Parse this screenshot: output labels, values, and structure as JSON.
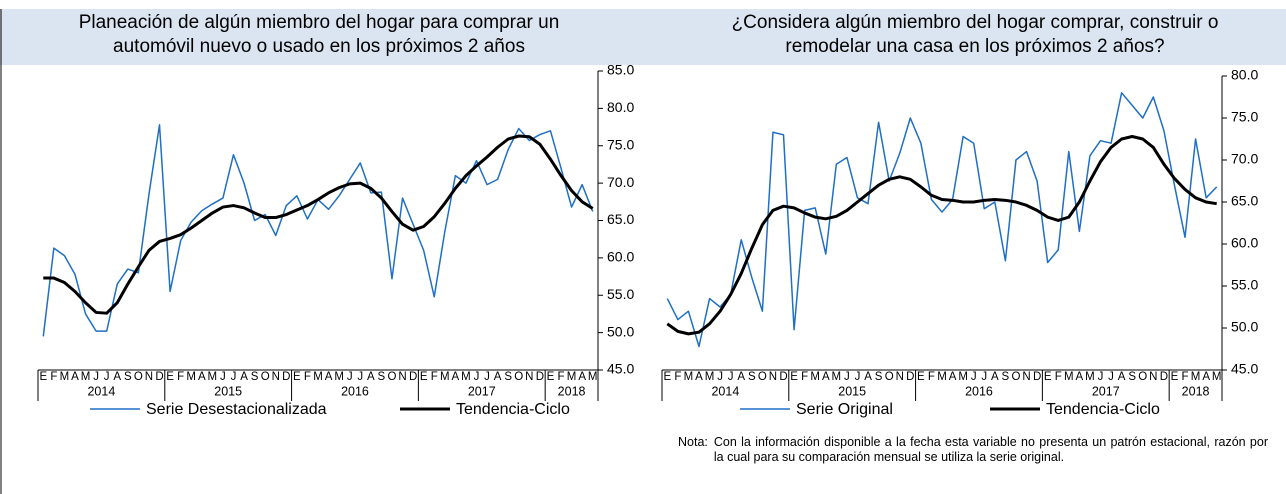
{
  "chart_data": [
    {
      "type": "line",
      "title": [
        "Planeación de algún miembro del hogar para comprar un",
        "automóvil nuevo o usado en los próximos 2 años"
      ],
      "categories": [
        "E",
        "F",
        "M",
        "A",
        "M",
        "J",
        "J",
        "A",
        "S",
        "O",
        "N",
        "D",
        "E",
        "F",
        "M",
        "A",
        "M",
        "J",
        "J",
        "A",
        "S",
        "O",
        "N",
        "D",
        "E",
        "F",
        "M",
        "A",
        "M",
        "J",
        "J",
        "A",
        "S",
        "O",
        "N",
        "D",
        "E",
        "F",
        "M",
        "A",
        "M",
        "J",
        "J",
        "A",
        "S",
        "O",
        "N",
        "D",
        "E",
        "F",
        "M",
        "A",
        "M"
      ],
      "years": [
        "2014",
        "2015",
        "2016",
        "2017",
        "2018"
      ],
      "ylim": [
        45,
        85
      ],
      "yticks": [
        {
          "value": 45,
          "label": "45.0"
        },
        {
          "value": 50,
          "label": "50.0"
        },
        {
          "value": 55,
          "label": "55.0"
        },
        {
          "value": 60,
          "label": "60.0"
        },
        {
          "value": 65,
          "label": "65.0"
        },
        {
          "value": 70,
          "label": "70.0"
        },
        {
          "value": 75,
          "label": "75.0"
        },
        {
          "value": 80,
          "label": "80.0"
        },
        {
          "value": 85,
          "label": "85.0"
        }
      ],
      "series": [
        {
          "name": "Serie Desestacionalizada",
          "color": "#1f6fc5",
          "values": [
            49.5,
            61.3,
            60.3,
            57.8,
            52.5,
            50.2,
            50.2,
            56.5,
            58.5,
            58.0,
            68.5,
            77.8,
            55.5,
            62.3,
            64.8,
            66.3,
            67.2,
            68.0,
            73.8,
            70.0,
            65.0,
            65.8,
            63.0,
            67.0,
            68.3,
            65.2,
            67.8,
            66.5,
            68.3,
            70.5,
            72.7,
            68.7,
            68.8,
            57.2,
            68.0,
            64.5,
            61.0,
            54.8,
            63.5,
            71.0,
            70.0,
            73.0,
            69.8,
            70.5,
            74.5,
            77.3,
            75.7,
            76.5,
            77.0,
            72.0,
            66.8,
            69.8,
            66.2
          ]
        },
        {
          "name": "Tendencia-Ciclo",
          "color": "#000000",
          "values": [
            57.3,
            57.3,
            56.7,
            55.5,
            54.0,
            52.7,
            52.6,
            54.0,
            56.5,
            58.8,
            61.0,
            62.2,
            62.6,
            63.1,
            64.0,
            65.0,
            66.0,
            66.8,
            67.0,
            66.7,
            66.0,
            65.4,
            65.4,
            65.8,
            66.4,
            67.0,
            67.8,
            68.7,
            69.4,
            69.9,
            70.0,
            69.3,
            68.0,
            66.2,
            64.5,
            63.7,
            64.2,
            65.5,
            67.3,
            69.3,
            71.0,
            72.3,
            73.5,
            74.8,
            75.9,
            76.3,
            76.2,
            75.2,
            73.2,
            71.0,
            69.0,
            67.5,
            66.6
          ]
        }
      ]
    },
    {
      "type": "line",
      "title": [
        "¿Considera algún miembro del hogar comprar, construir o",
        "remodelar una casa en los próximos 2 años?"
      ],
      "categories": [
        "E",
        "F",
        "M",
        "A",
        "M",
        "J",
        "J",
        "A",
        "S",
        "O",
        "N",
        "D",
        "E",
        "F",
        "M",
        "A",
        "M",
        "J",
        "J",
        "A",
        "S",
        "O",
        "N",
        "D",
        "E",
        "F",
        "M",
        "A",
        "M",
        "J",
        "J",
        "A",
        "S",
        "O",
        "N",
        "D",
        "E",
        "F",
        "M",
        "A",
        "M",
        "J",
        "J",
        "A",
        "S",
        "O",
        "N",
        "D",
        "E",
        "F",
        "M",
        "A",
        "M"
      ],
      "years": [
        "2014",
        "2015",
        "2016",
        "2017",
        "2018"
      ],
      "ylim": [
        45,
        80
      ],
      "yticks": [
        {
          "value": 45,
          "label": "45.0"
        },
        {
          "value": 50,
          "label": "50.0"
        },
        {
          "value": 55,
          "label": "55.0"
        },
        {
          "value": 60,
          "label": "60.0"
        },
        {
          "value": 65,
          "label": "65.0"
        },
        {
          "value": 70,
          "label": "70.0"
        },
        {
          "value": 75,
          "label": "75.0"
        },
        {
          "value": 80,
          "label": "80.0"
        }
      ],
      "series": [
        {
          "name": "Serie Original",
          "color": "#1f6fc5",
          "values": [
            53.5,
            51.0,
            52.0,
            47.8,
            53.5,
            52.5,
            54.0,
            60.5,
            56.0,
            52.0,
            73.3,
            73.0,
            49.8,
            64.0,
            64.3,
            58.8,
            69.5,
            70.3,
            65.5,
            64.8,
            74.5,
            67.5,
            70.8,
            75.0,
            72.0,
            65.3,
            63.8,
            65.3,
            72.8,
            72.0,
            64.2,
            65.0,
            58.0,
            70.0,
            71.0,
            67.5,
            57.8,
            59.3,
            71.0,
            61.5,
            70.5,
            72.3,
            72.0,
            78.0,
            76.5,
            75.0,
            77.5,
            73.5,
            67.0,
            60.8,
            72.5,
            65.5,
            66.8
          ]
        },
        {
          "name": "Tendencia-Ciclo",
          "color": "#000000",
          "values": [
            50.5,
            49.6,
            49.3,
            49.5,
            50.5,
            52.0,
            54.0,
            56.5,
            59.5,
            62.3,
            64.0,
            64.5,
            64.3,
            63.7,
            63.2,
            63.0,
            63.3,
            64.0,
            65.0,
            66.0,
            67.0,
            67.7,
            68.0,
            67.7,
            66.8,
            65.8,
            65.3,
            65.2,
            65.0,
            65.0,
            65.2,
            65.3,
            65.2,
            65.0,
            64.6,
            64.0,
            63.2,
            62.8,
            63.2,
            65.0,
            67.5,
            69.8,
            71.5,
            72.5,
            72.8,
            72.5,
            71.5,
            69.5,
            67.8,
            66.5,
            65.5,
            65.0,
            64.8
          ]
        }
      ],
      "note": {
        "label": "Nota:",
        "text": "Con la información disponible a la fecha esta variable no presenta un patrón estacional, razón por la cual para su comparación mensual se utiliza la serie original."
      }
    }
  ]
}
